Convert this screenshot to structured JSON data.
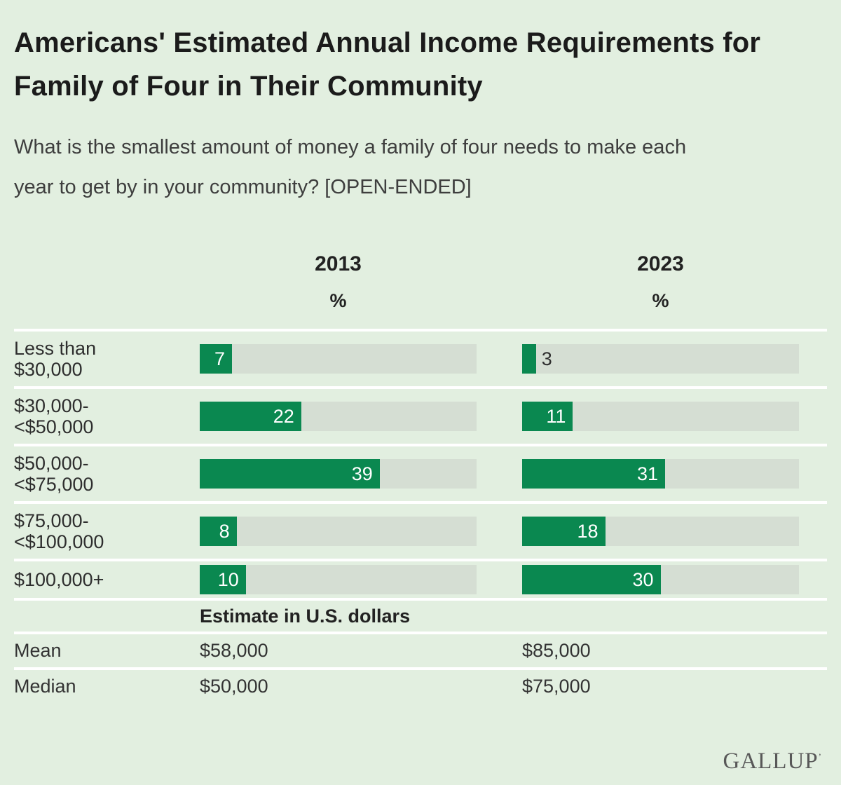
{
  "chart_data": {
    "type": "bar",
    "title": "Americans' Estimated Annual Income Requirements for\nFamily of Four in Their Community",
    "question": "What is the smallest amount of money a family of four needs to make each\nyear to get by in your community? [OPEN-ENDED]",
    "categories": [
      "Less than $30,000",
      "$30,000-<$50,000",
      "$50,000-<$75,000",
      "$75,000-<$100,000",
      "$100,000+"
    ],
    "series": [
      {
        "name": "2013",
        "values": [
          7,
          22,
          39,
          8,
          10
        ]
      },
      {
        "name": "2023",
        "values": [
          3,
          11,
          31,
          18,
          30
        ]
      }
    ],
    "unit": "%",
    "xlim": [
      0,
      60
    ],
    "grid": false,
    "legend_position": "column-headers",
    "summary": {
      "header": "Estimate in U.S. dollars",
      "rows": [
        {
          "label": "Mean",
          "values": [
            "$58,000",
            "$85,000"
          ]
        },
        {
          "label": "Median",
          "values": [
            "$50,000",
            "$75,000"
          ]
        }
      ]
    },
    "source": "GALLUP",
    "source_mark": "ʼ"
  },
  "row_labels": [
    "Less than\n$30,000",
    "$30,000-\n<$50,000",
    "$50,000-\n<$75,000",
    "$75,000-\n<$100,000",
    "$100,000+"
  ],
  "colors": {
    "background": "#e2efe0",
    "bar_fill": "#0a8850",
    "bar_track": "#d5ded3",
    "title_text": "#1b1b1b",
    "bar_value_inside": "#ffffff",
    "separator": "#ffffff"
  }
}
